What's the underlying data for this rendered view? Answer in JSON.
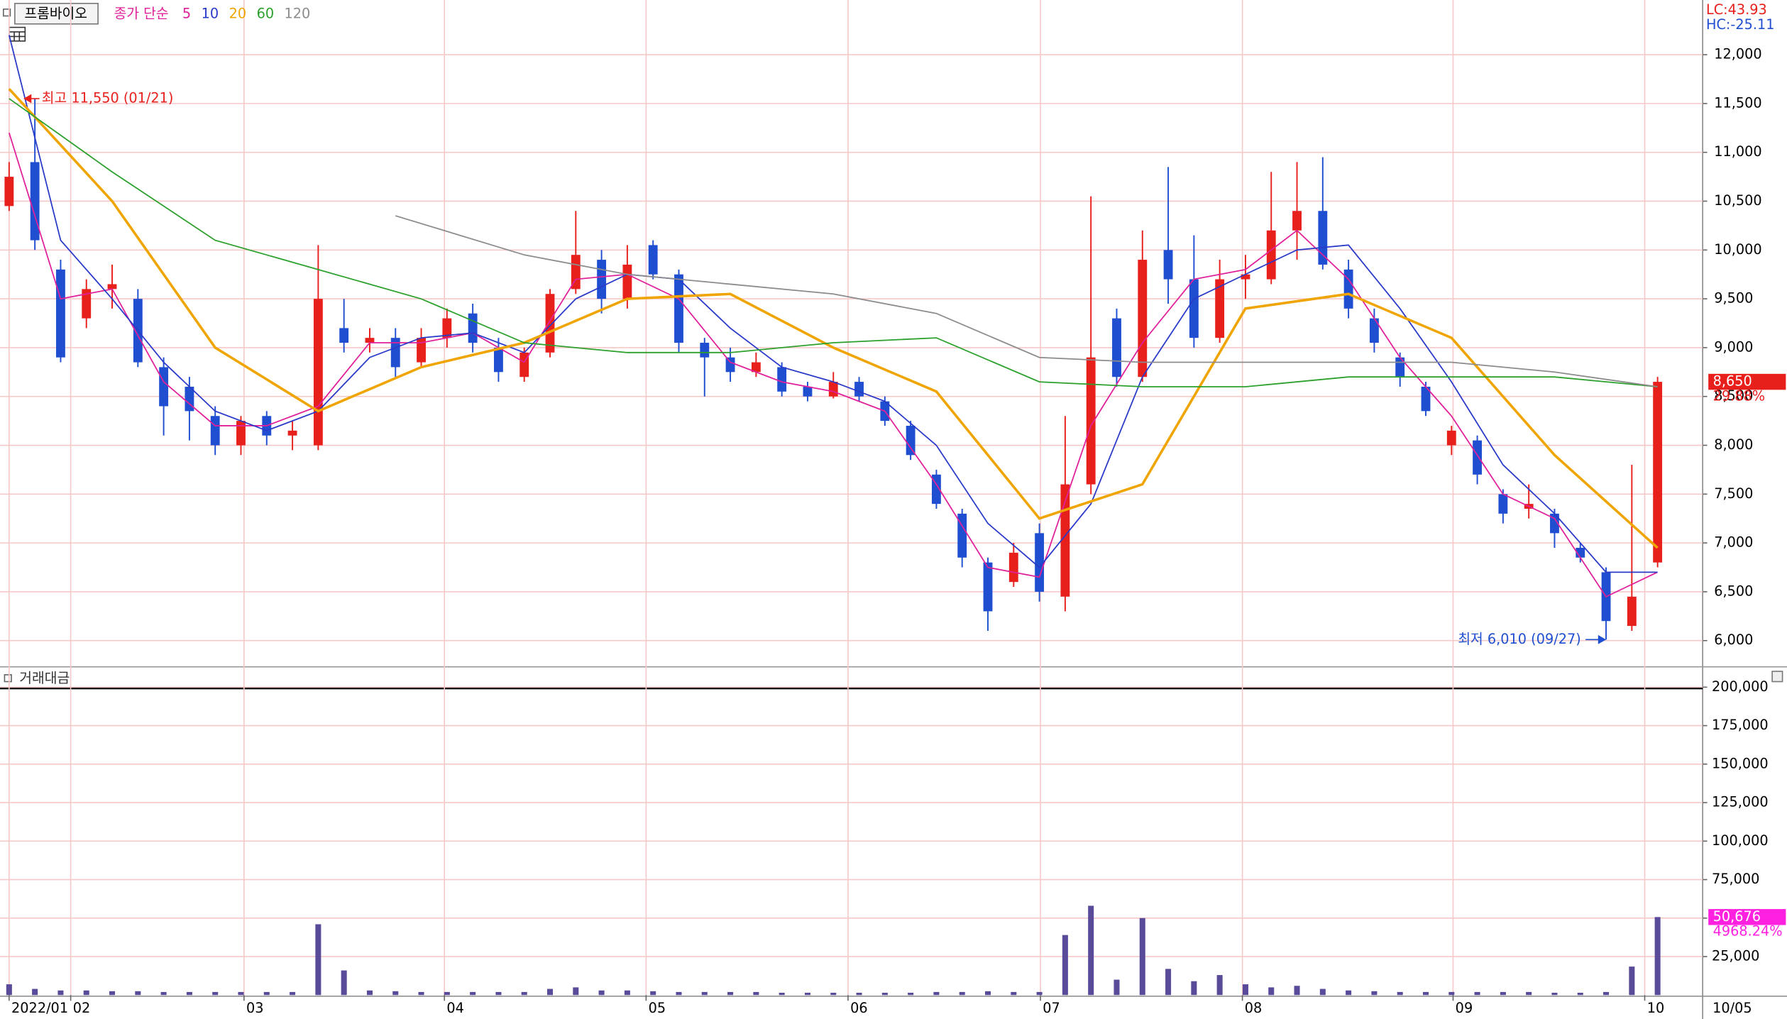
{
  "chart_data": [
    {
      "type": "candlestick",
      "title": "프롬바이오",
      "ma_label": "종가 단순",
      "open": [
        10450,
        10900,
        9800,
        9300,
        9600,
        9500,
        8800,
        8600,
        8300,
        8000,
        8300,
        8100,
        8000,
        9200,
        9050,
        9100,
        8850,
        9100,
        9350,
        9000,
        8700,
        8950,
        9600,
        9900,
        9500,
        10050,
        9750,
        9050,
        8900,
        8750,
        8800,
        8600,
        8500,
        8650,
        8450,
        8200,
        7700,
        7300,
        6800,
        6600,
        7100,
        6450,
        7600,
        9300,
        8700,
        10000,
        9700,
        9100,
        9700,
        9700,
        10200,
        10400,
        9800,
        9300,
        8900,
        8600,
        8000,
        8050,
        7500,
        7350,
        7300,
        6950,
        6700,
        6150,
        6800
      ],
      "high": [
        10900,
        11550,
        9900,
        9700,
        9850,
        9600,
        8900,
        8700,
        8400,
        8300,
        8350,
        8250,
        10050,
        9500,
        9200,
        9200,
        9200,
        9400,
        9450,
        9100,
        9000,
        9600,
        10400,
        10000,
        10050,
        10100,
        9800,
        9100,
        9000,
        8950,
        8850,
        8650,
        8750,
        8700,
        8500,
        8250,
        7750,
        7350,
        6850,
        7000,
        7200,
        8300,
        10550,
        9400,
        10200,
        10850,
        10150,
        9900,
        9950,
        10800,
        10900,
        10950,
        9900,
        9400,
        8950,
        8650,
        8200,
        8100,
        7550,
        7600,
        7350,
        7000,
        6750,
        7800,
        8700
      ],
      "low": [
        10400,
        10000,
        8850,
        9200,
        9400,
        8800,
        8100,
        8050,
        7900,
        7900,
        8000,
        7950,
        7950,
        8950,
        8950,
        8700,
        8800,
        9000,
        8950,
        8650,
        8650,
        8900,
        9550,
        9350,
        9400,
        9700,
        8950,
        8500,
        8650,
        8700,
        8500,
        8450,
        8480,
        8450,
        8200,
        7850,
        7350,
        6750,
        6100,
        6550,
        6400,
        6300,
        7500,
        8600,
        8650,
        9450,
        9000,
        9050,
        9500,
        9650,
        9900,
        9800,
        9300,
        8950,
        8600,
        8300,
        7900,
        7600,
        7200,
        7250,
        6950,
        6800,
        6010,
        6100,
        6750
      ],
      "close": [
        10750,
        10100,
        8900,
        9600,
        9650,
        8850,
        8400,
        8350,
        8000,
        8250,
        8100,
        8150,
        9500,
        9050,
        9100,
        8800,
        9100,
        9300,
        9050,
        8750,
        8950,
        9550,
        9950,
        9500,
        9850,
        9750,
        9050,
        8900,
        8750,
        8850,
        8550,
        8500,
        8650,
        8500,
        8250,
        7900,
        7400,
        6850,
        6300,
        6900,
        6500,
        7600,
        8900,
        8700,
        9900,
        9700,
        9100,
        9700,
        9750,
        10200,
        10400,
        9850,
        9400,
        9050,
        8700,
        8350,
        8150,
        7700,
        7300,
        7400,
        7100,
        6850,
        6200,
        6450,
        8650
      ],
      "up_color": "#e8201c",
      "down_color": "#1f4fd0",
      "series": [
        {
          "name": "5",
          "color": "#e0209a",
          "x": [
            0,
            2,
            4,
            6,
            8,
            10,
            12,
            14,
            16,
            18,
            20,
            22,
            24,
            26,
            28,
            30,
            32,
            34,
            36,
            38,
            40,
            42,
            44,
            46,
            48,
            50,
            52,
            54,
            56,
            58,
            60,
            62,
            64
          ],
          "values": [
            11200,
            9500,
            9600,
            8650,
            8200,
            8200,
            8400,
            9050,
            9050,
            9150,
            8850,
            9700,
            9750,
            9500,
            8850,
            8650,
            8550,
            8350,
            7600,
            6750,
            6650,
            8200,
            9050,
            9700,
            9800,
            10200,
            9700,
            8900,
            8300,
            7500,
            7250,
            6450,
            6700
          ]
        },
        {
          "name": "10",
          "color": "#2a3ac8",
          "x": [
            0,
            2,
            4,
            6,
            8,
            10,
            12,
            14,
            16,
            18,
            20,
            22,
            24,
            26,
            28,
            30,
            32,
            34,
            36,
            38,
            40,
            42,
            44,
            46,
            48,
            50,
            52,
            54,
            56,
            58,
            60,
            62,
            64
          ],
          "values": [
            12200,
            10100,
            9500,
            8850,
            8350,
            8150,
            8350,
            8900,
            9100,
            9150,
            8950,
            9500,
            9750,
            9700,
            9200,
            8800,
            8650,
            8450,
            8000,
            7200,
            6750,
            7400,
            8700,
            9500,
            9750,
            10000,
            10050,
            9400,
            8650,
            7800,
            7300,
            6700,
            6700
          ]
        },
        {
          "name": "20",
          "color": "#f0a400",
          "x": [
            0,
            4,
            8,
            12,
            16,
            20,
            24,
            28,
            32,
            36,
            40,
            44,
            48,
            52,
            56,
            60,
            64
          ],
          "values": [
            11650,
            10500,
            9000,
            8350,
            8800,
            9050,
            9500,
            9550,
            9000,
            8550,
            7250,
            7600,
            9400,
            9550,
            9100,
            7900,
            6950
          ]
        },
        {
          "name": "60",
          "color": "#2ca02c",
          "x": [
            0,
            4,
            8,
            12,
            16,
            20,
            24,
            28,
            32,
            36,
            40,
            44,
            48,
            52,
            56,
            60,
            64
          ],
          "values": [
            11550,
            10800,
            10100,
            9800,
            9500,
            9050,
            8950,
            8950,
            9050,
            9100,
            8650,
            8600,
            8600,
            8700,
            8700,
            8700,
            8600
          ]
        },
        {
          "name": "120",
          "color": "#8c8c8c",
          "x": [
            15,
            20,
            24,
            28,
            32,
            36,
            40,
            44,
            48,
            52,
            56,
            60,
            64
          ],
          "values": [
            10350,
            9950,
            9750,
            9650,
            9550,
            9350,
            8900,
            8850,
            8850,
            8850,
            8850,
            8750,
            8600
          ]
        }
      ],
      "xlim": [
        -0.354,
        65.75
      ],
      "ylim": [
        5755,
        12560
      ],
      "yticks": [
        {
          "value": 6000,
          "label": "6,000"
        },
        {
          "value": 6500,
          "label": "6,500"
        },
        {
          "value": 7000,
          "label": "7,000"
        },
        {
          "value": 7500,
          "label": "7,500"
        },
        {
          "value": 8000,
          "label": "8,000"
        },
        {
          "value": 8500,
          "label": "8,500"
        },
        {
          "value": 9000,
          "label": "9,000"
        },
        {
          "value": 9500,
          "label": "9,500"
        },
        {
          "value": 10000,
          "label": "10,000"
        },
        {
          "value": 10500,
          "label": "10,500"
        },
        {
          "value": 11000,
          "label": "11,000"
        },
        {
          "value": 11500,
          "label": "11,500"
        },
        {
          "value": 12000,
          "label": "12,000"
        }
      ],
      "grid": true,
      "annotations": [
        {
          "text": "최고 11,550 (01/21)",
          "x": 1,
          "y": 11550,
          "color": "#e8201c",
          "side": "right"
        },
        {
          "text": "최저 6,010 (09/27)",
          "x": 62,
          "y": 6010,
          "color": "#1f4fd0",
          "side": "left"
        }
      ],
      "last": {
        "value": 8650,
        "label": "8,650"
      },
      "change": {
        "value": 29.88,
        "label": "29.88%"
      },
      "marker_color": "#e8201c",
      "indicators": [
        {
          "value": 43.93,
          "label": "LC:43.93",
          "color": "#e8201c"
        },
        {
          "value": -25.11,
          "label": "HC:-25.11",
          "color": "#1f4fd0"
        }
      ]
    },
    {
      "type": "bar",
      "title": "거래대금",
      "color": "#5a4a9a",
      "values": [
        7000,
        4000,
        3000,
        3000,
        2500,
        2500,
        2000,
        2000,
        2000,
        2000,
        2000,
        2000,
        46000,
        16000,
        3000,
        2500,
        2000,
        2000,
        2000,
        2000,
        2000,
        4000,
        5000,
        3000,
        3000,
        2500,
        2000,
        2000,
        2000,
        2000,
        1500,
        1500,
        1500,
        1500,
        1500,
        1500,
        2000,
        2000,
        2500,
        2000,
        2000,
        39000,
        58000,
        10000,
        50000,
        17000,
        9000,
        13000,
        7000,
        5000,
        6000,
        4000,
        3000,
        2500,
        2000,
        2000,
        2000,
        2000,
        2000,
        2000,
        1500,
        1500,
        2000,
        18500,
        50676
      ],
      "xlim": [
        -0.354,
        65.75
      ],
      "ylim": [
        0,
        211000
      ],
      "yticks": [
        {
          "value": 25000,
          "label": "25,000"
        },
        {
          "value": 50000,
          "label": "50,000"
        },
        {
          "value": 75000,
          "label": "75,000"
        },
        {
          "value": 100000,
          "label": "100,000"
        },
        {
          "value": 125000,
          "label": "125,000"
        },
        {
          "value": 150000,
          "label": "150,000"
        },
        {
          "value": 175000,
          "label": "175,000"
        },
        {
          "value": 200000,
          "label": "200,000"
        }
      ],
      "xticks": [
        {
          "value": 0,
          "label": "2022/01"
        },
        {
          "value": 2.39,
          "label": "02"
        },
        {
          "value": 9.12,
          "label": "03"
        },
        {
          "value": 16.9,
          "label": "04"
        },
        {
          "value": 24.73,
          "label": "05"
        },
        {
          "value": 32.57,
          "label": "06"
        },
        {
          "value": 40.04,
          "label": "07"
        },
        {
          "value": 47.88,
          "label": "08"
        },
        {
          "value": 56.06,
          "label": "09"
        },
        {
          "value": 63.5,
          "label": "10"
        }
      ],
      "date_label": "10/05",
      "last": {
        "value": 50676,
        "label": "50,676"
      },
      "change": {
        "value": 4968.24,
        "label": "4968.24%"
      },
      "marker_color": "#ff20e0"
    }
  ]
}
